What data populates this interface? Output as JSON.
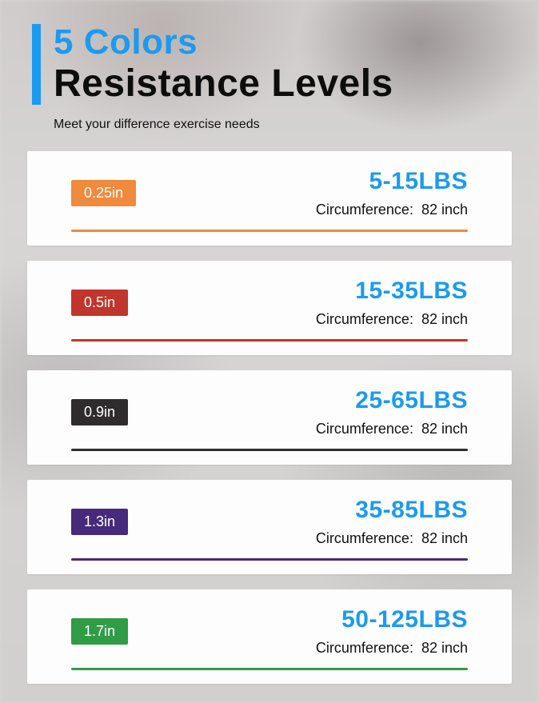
{
  "header": {
    "title_line1": "5 Colors",
    "title_line2": "Resistance Levels",
    "subtitle": "Meet your difference exercise needs",
    "accent_color": "#1b9af0"
  },
  "labels": {
    "circumference": "Circumference:"
  },
  "bands": [
    {
      "thickness": "0.25in",
      "weight": "5-15LBS",
      "circumference": "82 inch",
      "color": "#f08a3c"
    },
    {
      "thickness": "0.5in",
      "weight": "15-35LBS",
      "circumference": "82 inch",
      "color": "#c1352c"
    },
    {
      "thickness": "0.9in",
      "weight": "25-65LBS",
      "circumference": "82 inch",
      "color": "#2e2c2c"
    },
    {
      "thickness": "1.3in",
      "weight": "35-85LBS",
      "circumference": "82 inch",
      "color": "#472a7c"
    },
    {
      "thickness": "1.7in",
      "weight": "50-125LBS",
      "circumference": "82 inch",
      "color": "#309c46"
    }
  ]
}
